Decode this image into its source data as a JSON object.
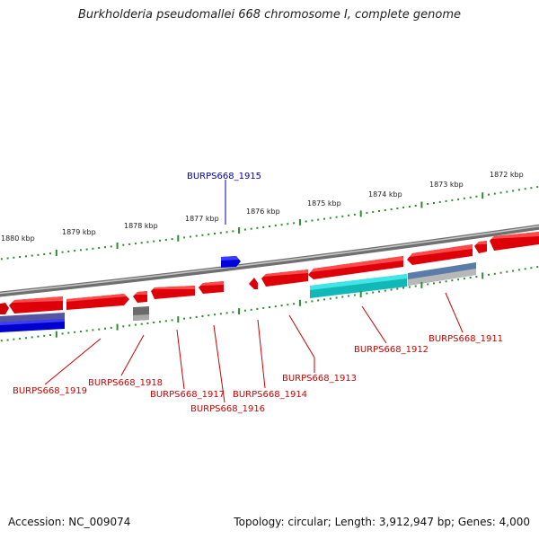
{
  "title": "Burkholderia pseudomallei 668 chromosome I, complete genome",
  "accession": "Accession: NC_009074",
  "summary": "Topology: circular; Length: 3,912,947 bp; Genes: 4,000",
  "colors": {
    "backbone": "#8c8c8c",
    "tick": "#2e8b2e",
    "gene_forward": "#e8000a",
    "gene_selected": "#0000cc",
    "gene_grey": "#6e6e6e",
    "gene_cyan": "#16c8c8",
    "gene_steel": "#5a7ca8",
    "label_red": "#cc0000",
    "label_blue": "#0000aa"
  },
  "scale": {
    "labels": [
      "1880 kbp",
      "1879 kbp",
      "1878 kbp",
      "1877 kbp",
      "1876 kbp",
      "1875 kbp",
      "1874 kbp",
      "1873 kbp",
      "1872 kbp"
    ]
  },
  "gene_labels": {
    "upper": [
      "BURPS668_1915"
    ],
    "lower": [
      "BURPS668_1919",
      "BURPS668_1918",
      "BURPS668_1917",
      "BURPS668_1916",
      "BURPS668_1914",
      "BURPS668_1913",
      "BURPS668_1912",
      "BURPS668_1911"
    ]
  }
}
